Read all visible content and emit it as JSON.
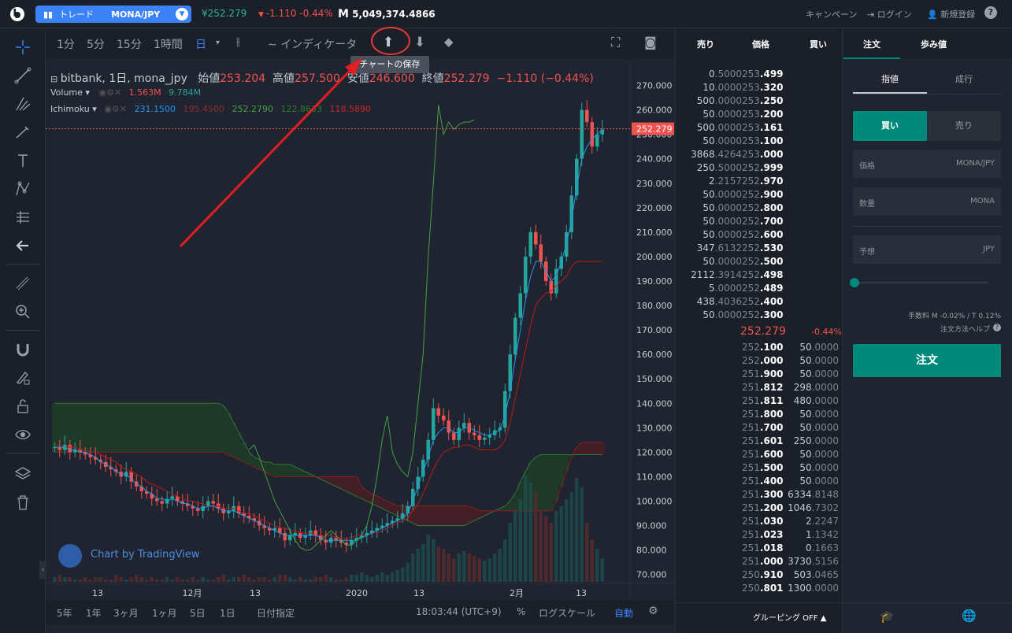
{
  "header": {
    "trade_label": "トレード",
    "pair": "MONA/JPY",
    "price": "¥252.279",
    "change": "-1.110 -0.44%",
    "volume": "5,049,374.4866",
    "volume_symbol": "M",
    "campaign": "キャンペーン",
    "login": "ログイン",
    "signup": "新規登録",
    "help": "?"
  },
  "chart_toolbar": {
    "intervals": [
      "1分",
      "5分",
      "15分",
      "1時間",
      "日"
    ],
    "indicators": "インディケータ",
    "tooltip": "チャートの保存"
  },
  "legend": {
    "symbol": "bitbank, 1日, mona_jpy",
    "open_label": "始値",
    "open": "253.204",
    "high_label": "高値",
    "high": "257.500",
    "low_label": "安値",
    "low": "246.600",
    "close_label": "終値",
    "close": "252.279",
    "chg": "−1.110 (−0.44%)",
    "volume_label": "Volume",
    "volume_a": "1.563M",
    "volume_b": "9.784M",
    "ichimoku_label": "Ichimoku",
    "ichimoku_vals": [
      "231.1500",
      "195.4500",
      "252.2790",
      "122.8633",
      "118.5890"
    ]
  },
  "chart": {
    "price_tag": "252.279",
    "watermark": "Chart by TradingView",
    "y_ticks": [
      "270.000",
      "260.000",
      "250.000",
      "240.000",
      "230.000",
      "220.000",
      "210.000",
      "200.000",
      "190.000",
      "180.000",
      "170.000",
      "160.000",
      "150.000",
      "140.000",
      "130.000",
      "120.000",
      "110.000",
      "100.000",
      "90.000",
      "80.000",
      "70.000"
    ],
    "x_ticks": [
      "13",
      "12月",
      "13",
      "2020",
      "13",
      "2月",
      "13"
    ]
  },
  "chart_data": {
    "type": "candlestick",
    "ylim": [
      67,
      275
    ],
    "close": [
      122,
      121,
      123,
      120,
      121,
      120,
      119,
      118,
      117,
      116,
      114,
      113,
      112,
      110,
      112,
      108,
      106,
      104,
      103,
      101,
      100,
      99,
      101,
      102,
      100,
      99,
      98,
      97,
      96,
      98,
      100,
      99,
      97,
      95,
      96,
      98,
      95,
      94,
      93,
      92,
      90,
      89,
      88,
      89,
      87,
      84,
      86,
      87,
      85,
      86,
      88,
      86,
      84,
      83,
      85,
      84,
      83,
      82,
      84,
      85,
      86,
      87,
      88,
      89,
      90,
      91,
      92,
      93,
      95,
      98,
      105,
      110,
      117,
      125,
      138,
      135,
      133,
      128,
      125,
      130,
      132,
      128,
      127,
      125,
      126,
      127,
      129,
      130,
      145,
      160,
      175,
      185,
      200,
      210,
      205,
      198,
      190,
      185,
      195,
      200,
      210,
      225,
      240,
      260,
      255,
      245,
      250,
      252
    ],
    "tenkan": [
      122,
      122,
      122,
      121,
      121,
      120,
      120,
      119,
      118,
      116,
      115,
      114,
      112,
      111,
      111,
      109,
      107,
      106,
      104,
      103,
      101,
      101,
      100,
      101,
      100,
      99,
      99,
      98,
      97,
      97,
      98,
      98,
      97,
      96,
      96,
      96,
      95,
      94,
      93,
      92,
      91,
      90,
      89,
      88,
      87,
      86,
      86,
      86,
      86,
      86,
      86,
      86,
      85,
      84,
      84,
      84,
      84,
      84,
      84,
      84,
      85,
      86,
      87,
      88,
      89,
      90,
      91,
      92,
      93,
      95,
      100,
      106,
      112,
      118,
      125,
      128,
      130,
      130,
      128,
      128,
      130,
      130,
      129,
      128,
      127,
      127,
      128,
      129,
      135,
      145,
      158,
      170,
      182,
      192,
      198,
      198,
      194,
      190,
      192,
      198,
      205,
      215,
      228,
      240,
      245,
      248,
      250,
      252
    ],
    "kijun": [
      123,
      123,
      122,
      122,
      122,
      121,
      121,
      120,
      120,
      119,
      118,
      117,
      116,
      114,
      113,
      112,
      111,
      110,
      108,
      107,
      106,
      105,
      104,
      103,
      102,
      101,
      100,
      100,
      99,
      99,
      98,
      98,
      98,
      97,
      97,
      97,
      96,
      95,
      95,
      94,
      93,
      92,
      91,
      90,
      89,
      89,
      88,
      88,
      87,
      87,
      87,
      86,
      86,
      86,
      86,
      85,
      85,
      85,
      85,
      86,
      86,
      86,
      87,
      87,
      88,
      89,
      90,
      91,
      92,
      93,
      96,
      99,
      103,
      108,
      113,
      117,
      120,
      121,
      122,
      122,
      123,
      123,
      122,
      121,
      121,
      121,
      121,
      122,
      125,
      132,
      142,
      152,
      162,
      172,
      180,
      183,
      185,
      186,
      188,
      190,
      192,
      196,
      198,
      198,
      198,
      198,
      198,
      198
    ],
    "span_a": [
      140,
      140,
      140,
      140,
      140,
      140,
      140,
      140,
      140,
      140,
      140,
      140,
      140,
      140,
      140,
      140,
      140,
      140,
      140,
      140,
      140,
      140,
      140,
      140,
      140,
      140,
      140,
      140,
      140,
      140,
      140,
      140,
      140,
      139,
      136,
      132,
      128,
      124,
      120,
      118,
      117,
      116,
      116,
      115,
      115,
      115,
      115,
      114,
      113,
      112,
      111,
      110,
      109,
      108,
      107,
      106,
      105,
      104,
      103,
      102,
      101,
      100,
      99,
      98,
      97,
      96,
      95,
      94,
      93,
      92,
      91,
      90,
      90,
      90,
      90,
      90,
      90,
      90,
      90,
      90,
      90,
      91,
      92,
      93,
      94,
      95,
      96,
      97,
      98,
      100,
      103,
      108,
      112,
      116,
      118,
      119,
      119,
      119,
      119,
      119,
      119,
      119,
      119,
      119,
      119,
      119,
      119,
      119
    ],
    "span_b": [
      120,
      120,
      120,
      120,
      120,
      120,
      120,
      120,
      120,
      120,
      120,
      120,
      120,
      120,
      120,
      120,
      120,
      120,
      120,
      120,
      120,
      120,
      120,
      120,
      120,
      120,
      120,
      120,
      120,
      120,
      120,
      120,
      120,
      120,
      119,
      118,
      117,
      116,
      115,
      114,
      113,
      112,
      111,
      110,
      110,
      110,
      110,
      110,
      110,
      110,
      110,
      110,
      110,
      110,
      110,
      110,
      110,
      110,
      110,
      110,
      106,
      104,
      103,
      102,
      101,
      100,
      99,
      98,
      98,
      98,
      98,
      98,
      98,
      98,
      98,
      98,
      98,
      98,
      98,
      98,
      98,
      98,
      97,
      96,
      96,
      96,
      96,
      96,
      96,
      96,
      96,
      96,
      96,
      96,
      96,
      96,
      96,
      96,
      100,
      106,
      112,
      118,
      122,
      124,
      124,
      124,
      124,
      124
    ],
    "chikou": [
      121,
      123,
      118,
      112,
      106,
      100,
      96,
      92,
      88,
      84,
      81,
      80,
      80,
      82,
      84,
      86,
      88,
      86,
      84,
      82,
      82,
      84,
      86,
      90,
      98,
      110,
      125,
      135,
      120,
      115,
      112,
      110,
      120,
      140,
      160,
      200,
      230,
      262,
      250,
      255,
      252,
      254,
      255,
      255,
      256
    ],
    "volume": [
      2,
      3,
      2,
      2,
      1,
      1,
      2,
      1,
      2,
      2,
      1,
      1,
      3,
      2,
      1,
      2,
      3,
      2,
      1,
      2,
      1,
      1,
      2,
      1,
      2,
      1,
      1,
      2,
      1,
      2,
      1,
      1,
      2,
      3,
      1,
      2,
      2,
      3,
      2,
      1,
      2,
      2,
      1,
      2,
      3,
      3,
      2,
      1,
      2,
      1,
      1,
      2,
      2,
      3,
      2,
      1,
      1,
      2,
      3,
      3,
      4,
      3,
      2,
      3,
      4,
      3,
      4,
      5,
      6,
      8,
      12,
      14,
      16,
      20,
      18,
      15,
      14,
      12,
      10,
      12,
      13,
      12,
      11,
      10,
      9,
      10,
      12,
      14,
      18,
      25,
      30,
      35,
      45,
      42,
      38,
      30,
      28,
      25,
      30,
      32,
      35,
      38,
      44,
      40,
      25,
      18,
      14,
      10
    ],
    "series_count": 108
  },
  "bottom_bar": {
    "ranges": [
      "5年",
      "1年",
      "3ヶ月",
      "1ヶ月",
      "5日",
      "1日"
    ],
    "date_pick": "日付指定",
    "time": "18:03:44 (UTC+9)",
    "percent": "%",
    "log": "ログスケール",
    "auto": "自動"
  },
  "orderbook": {
    "head_sell": "売り",
    "head_price": "価格",
    "head_buy": "買い",
    "asks": [
      [
        "0.5000",
        "253.499"
      ],
      [
        "10.0000",
        "253.320"
      ],
      [
        "500.0000",
        "253.250"
      ],
      [
        "50.0000",
        "253.200"
      ],
      [
        "500.0000",
        "253.161"
      ],
      [
        "50.0000",
        "253.100"
      ],
      [
        "3868.4264",
        "253.000"
      ],
      [
        "250.5000",
        "252.999"
      ],
      [
        "2.2157",
        "252.970"
      ],
      [
        "50.0000",
        "252.900"
      ],
      [
        "50.0000",
        "252.800"
      ],
      [
        "50.0000",
        "252.700"
      ],
      [
        "50.0000",
        "252.600"
      ],
      [
        "347.6132",
        "252.530"
      ],
      [
        "50.0000",
        "252.500"
      ],
      [
        "2112.3914",
        "252.498"
      ],
      [
        "5.0000",
        "252.489"
      ],
      [
        "438.4036",
        "252.400"
      ],
      [
        "50.0000",
        "252.300"
      ]
    ],
    "last_price": "252.279",
    "last_change": "-0.44%",
    "bids": [
      [
        "252.100",
        "50.0000"
      ],
      [
        "252.000",
        "50.0000"
      ],
      [
        "251.900",
        "50.0000"
      ],
      [
        "251.812",
        "298.0000"
      ],
      [
        "251.811",
        "480.0000"
      ],
      [
        "251.800",
        "50.0000"
      ],
      [
        "251.700",
        "50.0000"
      ],
      [
        "251.601",
        "250.0000"
      ],
      [
        "251.600",
        "50.0000"
      ],
      [
        "251.500",
        "50.0000"
      ],
      [
        "251.400",
        "50.0000"
      ],
      [
        "251.300",
        "6334.8148"
      ],
      [
        "251.200",
        "1046.7302"
      ],
      [
        "251.030",
        "2.2247"
      ],
      [
        "251.023",
        "1.1342"
      ],
      [
        "251.018",
        "0.1663"
      ],
      [
        "251.000",
        "3730.5156"
      ],
      [
        "250.910",
        "503.0465"
      ],
      [
        "250.801",
        "1300.0000"
      ]
    ],
    "grouping": "グルーピング OFF"
  },
  "order_panel": {
    "tab_order": "注文",
    "tab_trades": "歩み値",
    "type_limit": "指値",
    "type_market": "成行",
    "buy": "買い",
    "sell": "売り",
    "price_label": "価格",
    "price_unit": "MONA/JPY",
    "qty_label": "数量",
    "qty_unit": "MONA",
    "est_label": "予想",
    "est_unit": "JPY",
    "fee": "手数料 M -0.02% / T 0.12%",
    "help": "注文方法ヘルプ",
    "submit": "注文"
  },
  "colors": {
    "up": "#26a69a",
    "down": "#ef5350",
    "accent": "#00897b",
    "blue": "#3b82f6"
  }
}
